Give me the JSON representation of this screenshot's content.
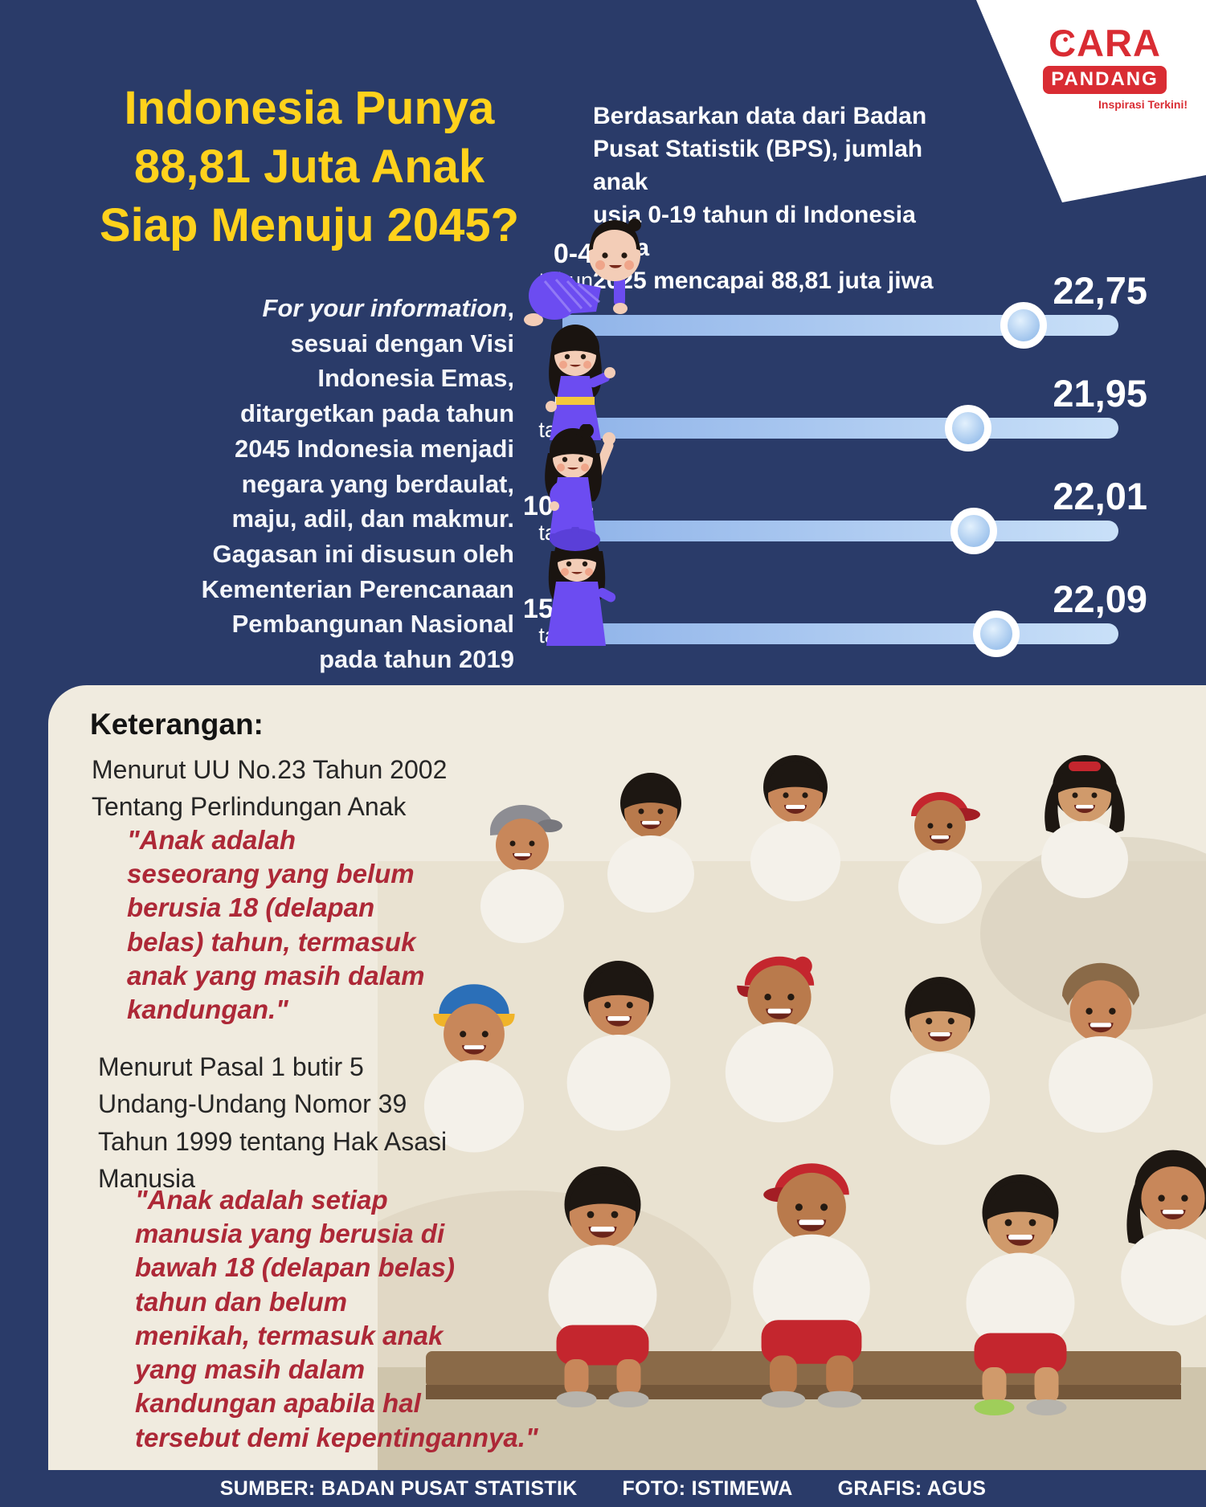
{
  "colors": {
    "background_navy": "#2a3b69",
    "headline_yellow": "#ffd21c",
    "panel_cream": "#f0ebdf",
    "logo_red": "#d92c33",
    "quote_red": "#ad2837",
    "bar_blue": "#b7d3f2"
  },
  "logo": {
    "name_top": "CARA",
    "name_top_rest": "ARA",
    "name_bottom": "PANDANG",
    "tagline": "Inspirasi Terkini!"
  },
  "header": {
    "title": "Indonesia Punya\n88,81 Juta Anak\nSiap Menuju 2045?",
    "intro_pre": "Berdasarkan data dari Badan\nPusat Statistik (BPS), jumlah anak\nusia 0-19 tahun di Indonesia pada\n2025 mencapai ",
    "intro_bold": "88,81",
    "intro_post": " juta jiwa"
  },
  "fyi": {
    "lead": "For your information",
    "rest": ",\nsesuai dengan Visi\nIndonesia Emas,\nditargetkan pada tahun\n2045 Indonesia menjadi\nnegara yang berdaulat,\nmaju, adil, dan makmur.\nGagasan ini disusun oleh\nKementerian Perencanaan\nPembangunan Nasional\npada tahun 2019"
  },
  "chart_data": {
    "type": "bar",
    "title": "Jumlah anak usia 0-19 tahun di Indonesia pada 2025 (juta jiwa)",
    "categories": [
      "0-4 tahun",
      "5-9 tahun",
      "10-14 tahun",
      "15-19 tahun"
    ],
    "values": [
      22.75,
      21.95,
      22.01,
      22.09
    ],
    "total": 88.81,
    "unit": "juta jiwa",
    "rows": [
      {
        "range": "0-4",
        "unit": "tahun",
        "value_label": "22,75",
        "handle_pct": 83
      },
      {
        "range": "5-9",
        "unit": "tahun",
        "value_label": "21,95",
        "handle_pct": 73
      },
      {
        "range": "10-14",
        "unit": "tahun",
        "value_label": "22,01",
        "handle_pct": 74
      },
      {
        "range": "15-19",
        "unit": "tahun",
        "value_label": "22,09",
        "handle_pct": 78
      }
    ],
    "layout": {
      "orientation": "horizontal",
      "grid": "off",
      "legend": "off",
      "value_position": "above-right",
      "bar_style": "slider-track-with-handle"
    }
  },
  "keterangan": {
    "heading": "Keterangan:",
    "ref1": "Menurut UU No.23 Tahun 2002\nTentang Perlindungan Anak",
    "quote1": "\"Anak adalah\nseseorang yang belum\nberusia 18 (delapan\nbelas) tahun, termasuk\nanak yang masih dalam\nkandungan.\"",
    "ref2": "Menurut Pasal 1 butir 5\nUndang-Undang Nomor 39\nTahun 1999 tentang Hak Asasi\nManusia",
    "quote2": "\"Anak adalah setiap\nmanusia yang berusia di\nbawah 18 (delapan belas)\ntahun dan belum\nmenikah, termasuk anak\nyang masih dalam\nkandungan apabila hal\ntersebut demi kepentingannya.\""
  },
  "footer": {
    "source": "SUMBER: BADAN PUSAT STATISTIK",
    "photo": "FOTO: ISTIMEWA",
    "graphic": "GRAFIS: AGUS"
  }
}
